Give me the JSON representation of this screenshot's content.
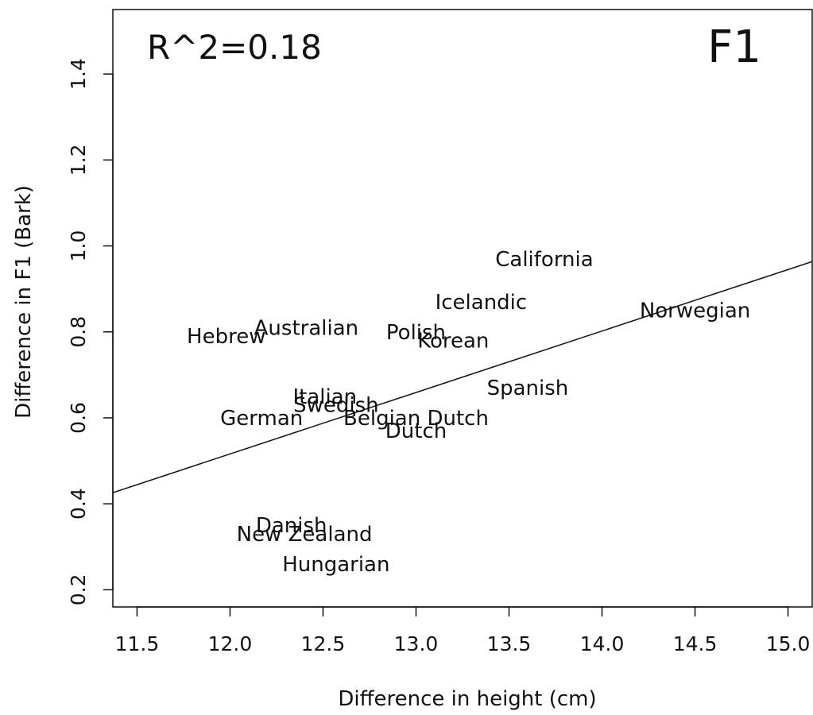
{
  "chart_data": {
    "type": "scatter",
    "panel_label": "F1",
    "annotation": "R^2=0.18",
    "xlabel": "Difference in height (cm)",
    "ylabel": "Difference in F1 (Bark)",
    "xlim": [
      11.37,
      15.13
    ],
    "ylim": [
      0.16,
      1.55
    ],
    "xticks": [
      11.5,
      12.0,
      12.5,
      13.0,
      13.5,
      14.0,
      14.5,
      15.0
    ],
    "xtick_labels": [
      "11.5",
      "12.0",
      "12.5",
      "13.0",
      "13.5",
      "14.0",
      "14.5",
      "15.0"
    ],
    "yticks": [
      0.2,
      0.4,
      0.6,
      0.8,
      1.0,
      1.2,
      1.4
    ],
    "ytick_labels": [
      "0.2",
      "0.4",
      "0.6",
      "0.8",
      "1.0",
      "1.2",
      "1.4"
    ],
    "grid": false,
    "regression_line": {
      "intercept": -1.2,
      "slope": 0.143
    },
    "points": [
      {
        "label": "California",
        "x": 13.69,
        "y": 0.97
      },
      {
        "label": "Icelandic",
        "x": 13.35,
        "y": 0.87
      },
      {
        "label": "Norwegian",
        "x": 14.5,
        "y": 0.85
      },
      {
        "label": "Australian",
        "x": 12.41,
        "y": 0.81
      },
      {
        "label": "Hebrew",
        "x": 11.98,
        "y": 0.79
      },
      {
        "label": "Polish",
        "x": 13.0,
        "y": 0.8
      },
      {
        "label": "Korean",
        "x": 13.2,
        "y": 0.78
      },
      {
        "label": "Spanish",
        "x": 13.6,
        "y": 0.67
      },
      {
        "label": "Italian",
        "x": 12.51,
        "y": 0.65
      },
      {
        "label": "Swedish",
        "x": 12.57,
        "y": 0.63
      },
      {
        "label": "German",
        "x": 12.17,
        "y": 0.6
      },
      {
        "label": "Belgian Dutch",
        "x": 13.0,
        "y": 0.6
      },
      {
        "label": "Dutch",
        "x": 13.0,
        "y": 0.57
      },
      {
        "label": "Danish",
        "x": 12.33,
        "y": 0.35
      },
      {
        "label": "New Zealand",
        "x": 12.4,
        "y": 0.33
      },
      {
        "label": "Hungarian",
        "x": 12.57,
        "y": 0.26
      }
    ]
  }
}
